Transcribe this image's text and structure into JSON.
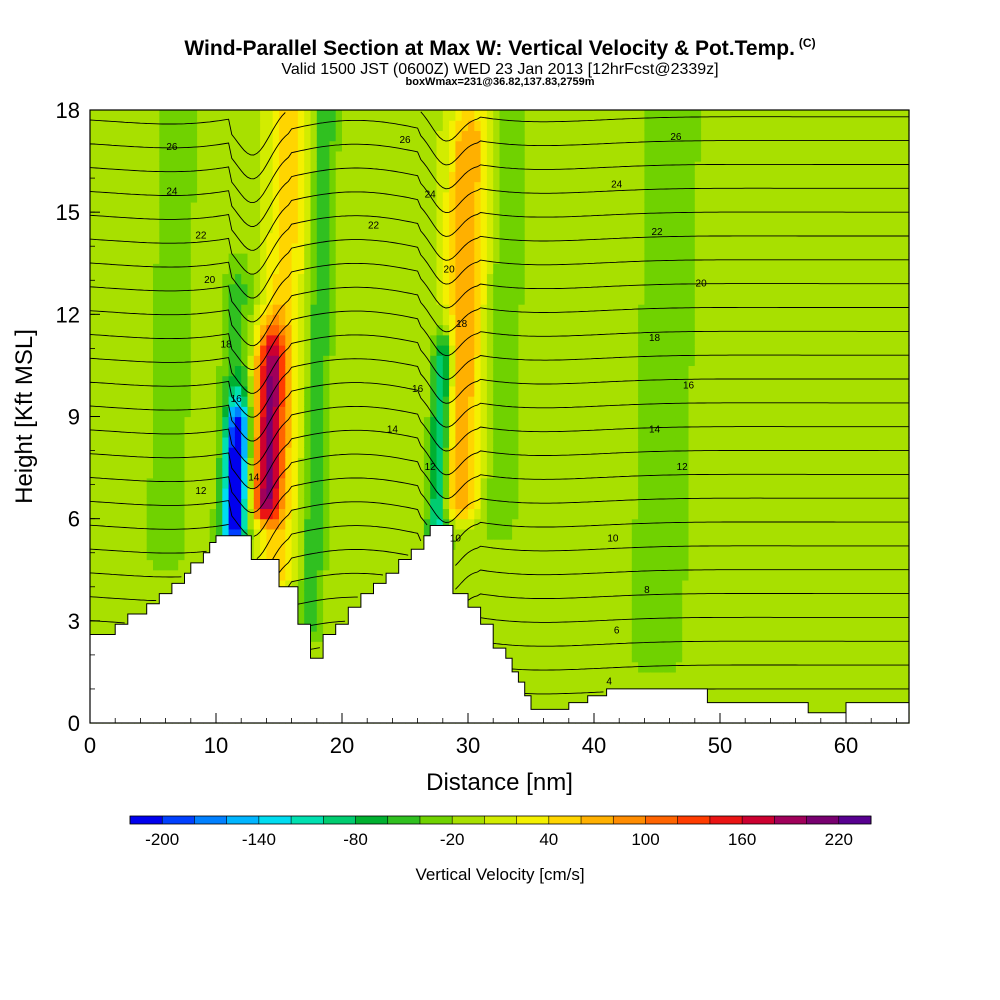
{
  "header": {
    "title": "Wind-Parallel Section at Max W: Vertical Velocity & Pot.Temp.",
    "copyright_mark": "(C)",
    "valid_line": "Valid 1500 JST (0600Z) WED 23 Jan 2013 [12hrFcst@2339z]",
    "box_line": "boxWmax=231@36.82,137.83,2759m"
  },
  "chart_data": {
    "type": "heatmap",
    "xlabel": "Distance [nm]",
    "ylabel": "Height [Kft MSL]",
    "xlim": [
      0,
      65
    ],
    "ylim": [
      0,
      18
    ],
    "x_ticks": [
      0,
      10,
      20,
      30,
      40,
      50,
      60
    ],
    "y_ticks": [
      0,
      3,
      6,
      9,
      12,
      15,
      18
    ],
    "grid": false,
    "background_value": 10,
    "colorbar": {
      "label": "Vertical Velocity [cm/s]",
      "placement": "bottom",
      "tick_labels": [
        -200,
        -140,
        -80,
        -20,
        40,
        100,
        160,
        220
      ],
      "colors": [
        "#0000ee",
        "#0040ff",
        "#0080ff",
        "#00b5ff",
        "#00dcf0",
        "#00e0b0",
        "#00cc70",
        "#00b030",
        "#30c020",
        "#70d200",
        "#a8e000",
        "#d2ec00",
        "#f4f000",
        "#ffd500",
        "#ffb000",
        "#ff8c00",
        "#ff6400",
        "#ff3c00",
        "#ea1414",
        "#cc0030",
        "#a0005a",
        "#780070",
        "#580090"
      ]
    },
    "velocity_features": [
      {
        "x": 11.5,
        "y0": 5.8,
        "y1": 8.4,
        "peak": -190,
        "width": 0.9
      },
      {
        "x": 11.1,
        "y0": 4.5,
        "y1": 12.5,
        "peak": -40,
        "width": 1.1
      },
      {
        "x": 14.0,
        "y0": 6.5,
        "y1": 10.5,
        "peak": 170,
        "width": 1.1
      },
      {
        "x": 14.8,
        "y0": 4.5,
        "y1": 18.0,
        "peak": 60,
        "width": 1.6
      },
      {
        "x": 17.5,
        "y0": 3.0,
        "y1": 18.0,
        "peak": -50,
        "width": 0.9
      },
      {
        "x": 27.6,
        "y0": 5.5,
        "y1": 10.5,
        "peak": -120,
        "width": 0.8
      },
      {
        "x": 29.2,
        "y0": 6.5,
        "y1": 17.0,
        "peak": 90,
        "width": 1.6
      },
      {
        "x": 32.5,
        "y0": 6.0,
        "y1": 18.0,
        "peak": -30,
        "width": 1.2
      },
      {
        "x": 6.0,
        "y0": 5.0,
        "y1": 18.0,
        "peak": -25,
        "width": 1.5
      },
      {
        "x": 45.0,
        "y0": 2.0,
        "y1": 18.0,
        "peak": -20,
        "width": 2.5
      }
    ],
    "contour_labels": [
      {
        "text": "26",
        "x": 6.5,
        "y": 16.9
      },
      {
        "text": "24",
        "x": 6.5,
        "y": 15.6
      },
      {
        "text": "22",
        "x": 8.8,
        "y": 14.3
      },
      {
        "text": "20",
        "x": 9.5,
        "y": 13.0
      },
      {
        "text": "18",
        "x": 10.8,
        "y": 11.1
      },
      {
        "text": "16",
        "x": 11.6,
        "y": 9.5
      },
      {
        "text": "14",
        "x": 13.0,
        "y": 7.2
      },
      {
        "text": "12",
        "x": 8.8,
        "y": 6.8
      },
      {
        "text": "26",
        "x": 25.0,
        "y": 17.1
      },
      {
        "text": "24",
        "x": 27.0,
        "y": 15.5
      },
      {
        "text": "22",
        "x": 22.5,
        "y": 14.6
      },
      {
        "text": "20",
        "x": 28.5,
        "y": 13.3
      },
      {
        "text": "18",
        "x": 29.5,
        "y": 11.7
      },
      {
        "text": "16",
        "x": 26.0,
        "y": 9.8
      },
      {
        "text": "14",
        "x": 24.0,
        "y": 8.6
      },
      {
        "text": "12",
        "x": 27.0,
        "y": 7.5
      },
      {
        "text": "10",
        "x": 29.0,
        "y": 5.4
      },
      {
        "text": "26",
        "x": 46.5,
        "y": 17.2
      },
      {
        "text": "24",
        "x": 41.8,
        "y": 15.8
      },
      {
        "text": "22",
        "x": 45.0,
        "y": 14.4
      },
      {
        "text": "20",
        "x": 48.5,
        "y": 12.9
      },
      {
        "text": "18",
        "x": 44.8,
        "y": 11.3
      },
      {
        "text": "16",
        "x": 47.5,
        "y": 9.9
      },
      {
        "text": "14",
        "x": 44.8,
        "y": 8.6
      },
      {
        "text": "12",
        "x": 47.0,
        "y": 7.5
      },
      {
        "text": "10",
        "x": 41.5,
        "y": 5.4
      },
      {
        "text": "8",
        "x": 44.2,
        "y": 3.9
      },
      {
        "text": "6",
        "x": 41.8,
        "y": 2.7
      },
      {
        "text": "4",
        "x": 41.2,
        "y": 1.2
      }
    ],
    "contour_levels_theta": [
      4,
      5,
      6,
      7,
      8,
      9,
      10,
      11,
      12,
      13,
      14,
      15,
      16,
      17,
      18,
      19,
      20,
      21,
      22,
      23,
      24,
      25,
      26,
      27,
      28
    ],
    "terrain_kft": [
      [
        0,
        2.6
      ],
      [
        2,
        2.6
      ],
      [
        2,
        2.9
      ],
      [
        3,
        2.9
      ],
      [
        3,
        3.2
      ],
      [
        4.5,
        3.2
      ],
      [
        4.5,
        3.5
      ],
      [
        5.5,
        3.5
      ],
      [
        5.5,
        3.8
      ],
      [
        6.5,
        3.8
      ],
      [
        6.5,
        4.1
      ],
      [
        7.5,
        4.1
      ],
      [
        7.5,
        4.4
      ],
      [
        8,
        4.4
      ],
      [
        8,
        4.7
      ],
      [
        9,
        4.7
      ],
      [
        9,
        5.0
      ],
      [
        9.5,
        5.0
      ],
      [
        9.5,
        5.3
      ],
      [
        10,
        5.3
      ],
      [
        10,
        5.5
      ],
      [
        12.8,
        5.5
      ],
      [
        12.8,
        4.8
      ],
      [
        15,
        4.8
      ],
      [
        15,
        4.0
      ],
      [
        16.5,
        4.0
      ],
      [
        16.5,
        2.9
      ],
      [
        17.5,
        2.9
      ],
      [
        17.5,
        1.9
      ],
      [
        18.5,
        1.9
      ],
      [
        18.5,
        2.6
      ],
      [
        19.5,
        2.6
      ],
      [
        19.5,
        2.9
      ],
      [
        20.5,
        2.9
      ],
      [
        20.5,
        3.4
      ],
      [
        21.5,
        3.4
      ],
      [
        21.5,
        3.8
      ],
      [
        22.5,
        3.8
      ],
      [
        22.5,
        4.1
      ],
      [
        23.5,
        4.1
      ],
      [
        23.5,
        4.4
      ],
      [
        24.5,
        4.4
      ],
      [
        24.5,
        4.8
      ],
      [
        25.5,
        4.8
      ],
      [
        25.5,
        5.1
      ],
      [
        26.5,
        5.1
      ],
      [
        26.5,
        5.5
      ],
      [
        27,
        5.5
      ],
      [
        27,
        5.8
      ],
      [
        28.8,
        5.8
      ],
      [
        28.8,
        3.8
      ],
      [
        30,
        3.8
      ],
      [
        30,
        3.4
      ],
      [
        31,
        3.4
      ],
      [
        31,
        2.9
      ],
      [
        32,
        2.9
      ],
      [
        32,
        2.2
      ],
      [
        33,
        2.2
      ],
      [
        33,
        1.9
      ],
      [
        33.5,
        1.9
      ],
      [
        33.5,
        1.5
      ],
      [
        34,
        1.5
      ],
      [
        34,
        1.2
      ],
      [
        34.5,
        1.2
      ],
      [
        34.5,
        0.8
      ],
      [
        35,
        0.8
      ],
      [
        35,
        0.4
      ],
      [
        38,
        0.4
      ],
      [
        38,
        0.6
      ],
      [
        39.5,
        0.6
      ],
      [
        39.5,
        0.8
      ],
      [
        41,
        0.8
      ],
      [
        41,
        1.0
      ],
      [
        49,
        1.0
      ],
      [
        49,
        0.6
      ],
      [
        57,
        0.6
      ],
      [
        57,
        0.3
      ],
      [
        60,
        0.3
      ],
      [
        60,
        0.6
      ],
      [
        65,
        0.6
      ]
    ]
  }
}
